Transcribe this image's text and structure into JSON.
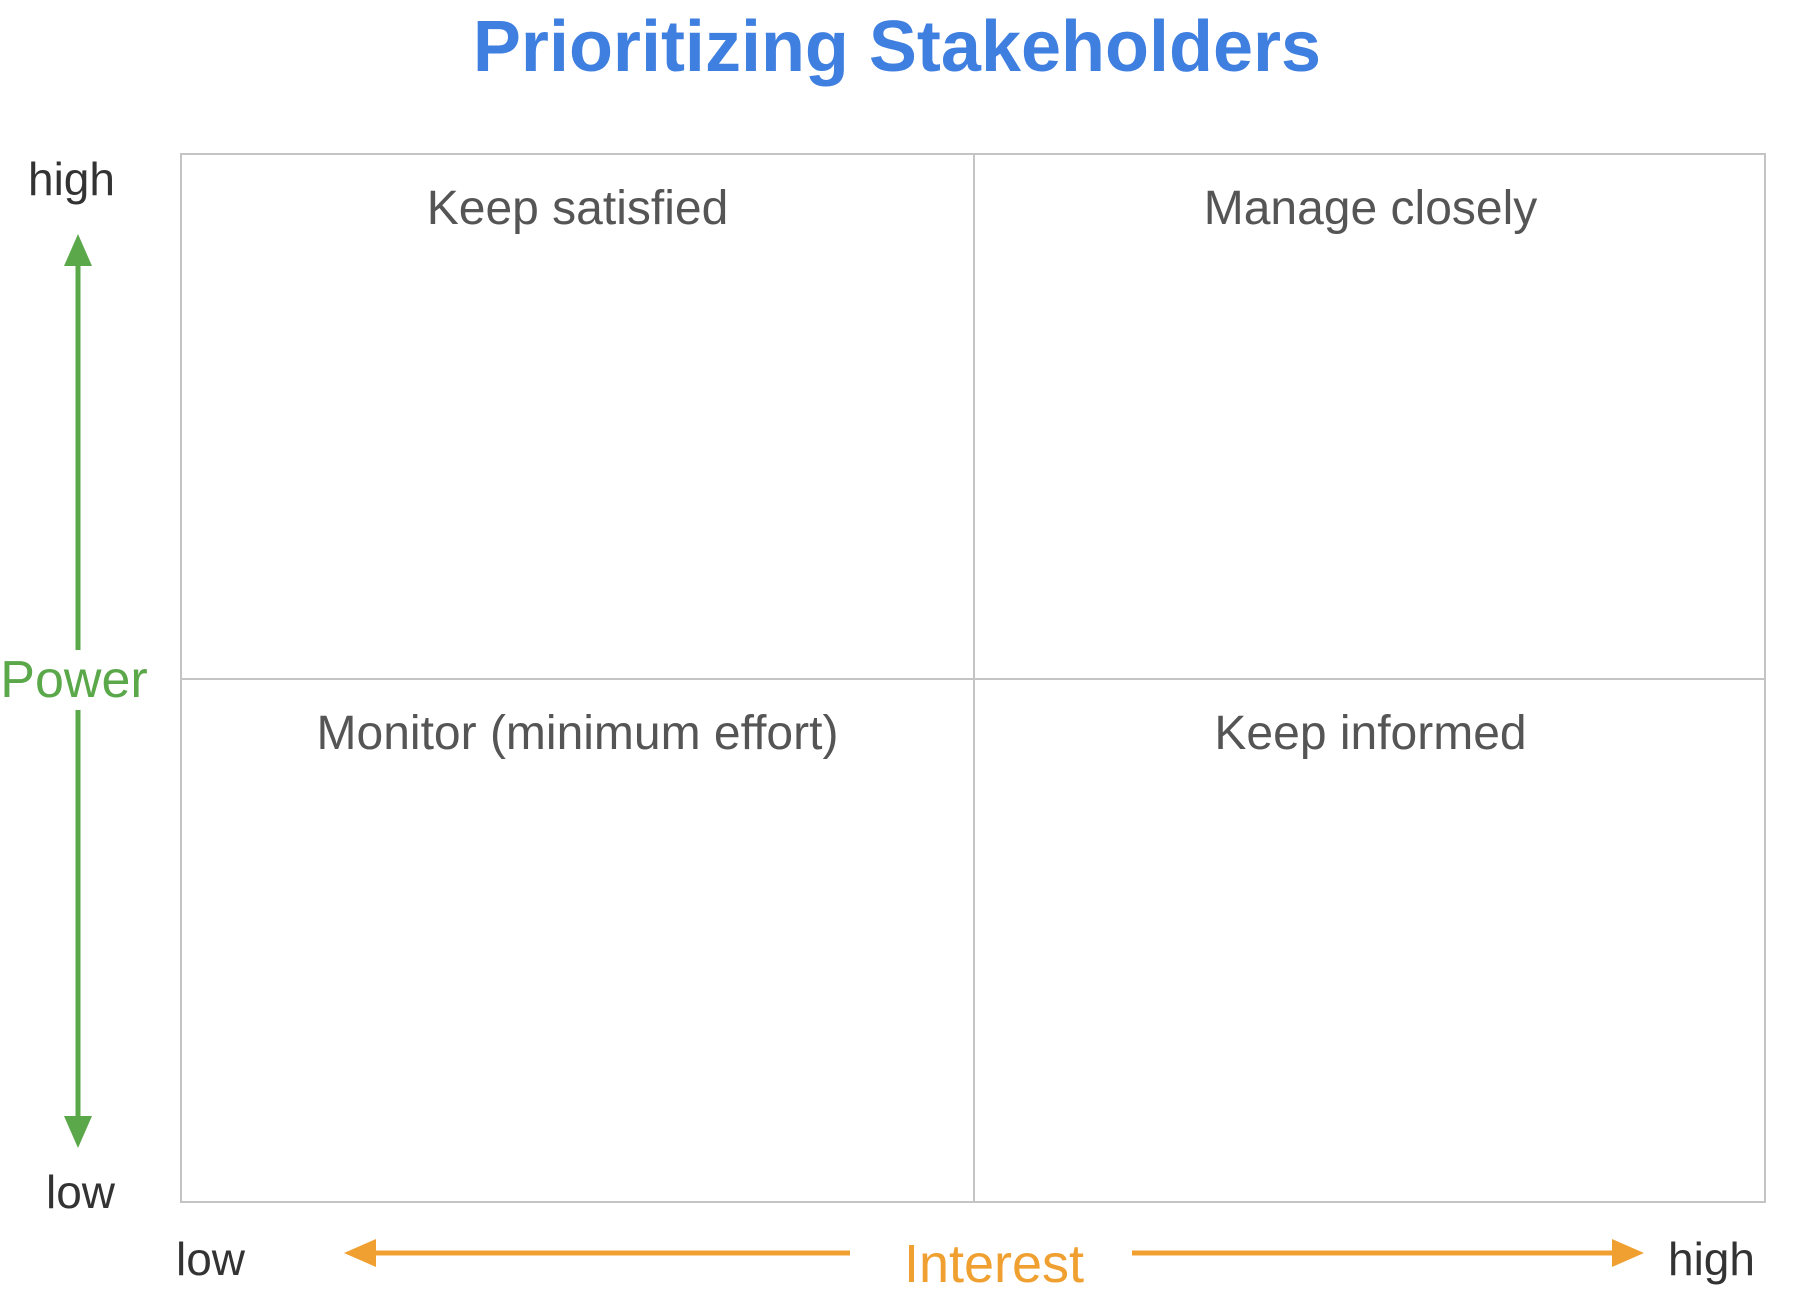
{
  "title": "Prioritizing Stakeholders",
  "y_axis": {
    "label": "Power",
    "high": "high",
    "low": "low",
    "color": "#5aa84a"
  },
  "x_axis": {
    "label": "Interest",
    "low": "low",
    "high": "high",
    "color": "#f0a030"
  },
  "quadrants": {
    "top_left": "Keep satisfied",
    "top_right": "Manage closely",
    "bottom_left": "Monitor (minimum effort)",
    "bottom_right": "Keep informed"
  },
  "colors": {
    "title": "#3f7fe0",
    "grid_line": "#c4c4c4",
    "quadrant_text": "#555555"
  }
}
